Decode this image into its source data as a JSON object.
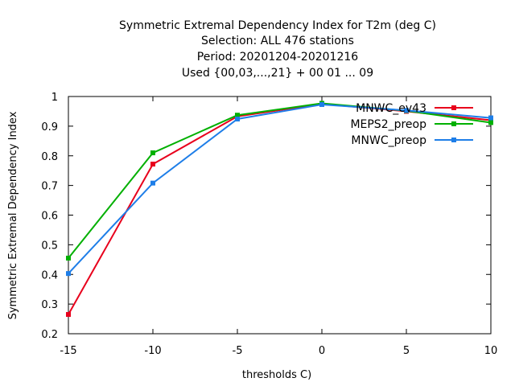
{
  "chart_data": {
    "type": "line",
    "title_lines": [
      "Symmetric Extremal Dependency Index  for T2m (deg C)",
      "Selection: ALL    476 stations",
      "Period: 20201204-20201216",
      "Used {00,03,...,21} + 00 01 ... 09"
    ],
    "xlabel": "thresholds C)",
    "ylabel": "Symmetric Extremal Dependency Index",
    "x": [
      -15,
      -10,
      -5,
      0,
      5,
      10
    ],
    "xlim": [
      -15,
      10
    ],
    "ylim": [
      0.2,
      1.0
    ],
    "xticks": [
      -15,
      -10,
      -5,
      0,
      5,
      10
    ],
    "xtick_labels": [
      "-15",
      "-10",
      "-5",
      "0",
      "5",
      "10"
    ],
    "yticks": [
      0.2,
      0.3,
      0.4,
      0.5,
      0.6,
      0.7,
      0.8,
      0.9,
      1.0
    ],
    "ytick_labels": [
      "0.2",
      "0.3",
      "0.4",
      "0.5",
      "0.6",
      "0.7",
      "0.8",
      "0.9",
      "1"
    ],
    "grid": false,
    "legend_position": "top-right",
    "series": [
      {
        "name": "MNWC_ev43",
        "color": "#e8001c",
        "values": [
          0.265,
          0.772,
          0.933,
          0.975,
          0.95,
          0.92
        ]
      },
      {
        "name": "MEPS2_preop",
        "color": "#00b000",
        "values": [
          0.455,
          0.81,
          0.937,
          0.977,
          0.952,
          0.912
        ]
      },
      {
        "name": "MNWC_preop",
        "color": "#1e7ee8",
        "values": [
          0.403,
          0.708,
          0.924,
          0.973,
          0.953,
          0.928
        ]
      }
    ]
  }
}
